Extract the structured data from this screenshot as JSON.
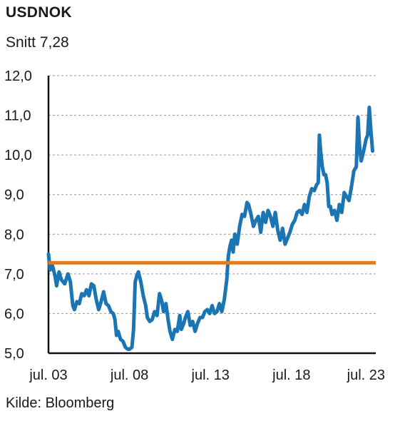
{
  "chart_data": {
    "type": "line",
    "title": "USDNOK",
    "subtitle": "Snitt 7,28",
    "source": "Kilde: Bloomberg",
    "ylim": [
      5.0,
      12.0
    ],
    "xlim": [
      2003.5,
      2023.7
    ],
    "yticks": [
      {
        "value": 5.0,
        "label": "5,0"
      },
      {
        "value": 6.0,
        "label": "6,0"
      },
      {
        "value": 7.0,
        "label": "7,0"
      },
      {
        "value": 8.0,
        "label": "8,0"
      },
      {
        "value": 9.0,
        "label": "9,0"
      },
      {
        "value": 10.0,
        "label": "10,0"
      },
      {
        "value": 11.0,
        "label": "11,0"
      },
      {
        "value": 12.0,
        "label": "12,0"
      }
    ],
    "xticks": [
      {
        "value": 2003.5,
        "label": "jul. 03"
      },
      {
        "value": 2008.5,
        "label": "jul. 08"
      },
      {
        "value": 2013.5,
        "label": "jul. 13"
      },
      {
        "value": 2018.5,
        "label": "jul. 18"
      },
      {
        "value": 2023.5,
        "label": "jul. 23"
      }
    ],
    "grid": true,
    "average": {
      "value": 7.28,
      "color": "#e07b24"
    },
    "series": [
      {
        "color": "#1b75b3",
        "points": [
          [
            2003.5,
            7.5
          ],
          [
            2003.6,
            7.1
          ],
          [
            2003.75,
            7.2
          ],
          [
            2003.9,
            6.95
          ],
          [
            2004.0,
            6.7
          ],
          [
            2004.15,
            7.05
          ],
          [
            2004.3,
            6.85
          ],
          [
            2004.5,
            6.75
          ],
          [
            2004.7,
            7.0
          ],
          [
            2004.85,
            6.8
          ],
          [
            2005.0,
            6.2
          ],
          [
            2005.1,
            6.1
          ],
          [
            2005.25,
            6.3
          ],
          [
            2005.4,
            6.25
          ],
          [
            2005.55,
            6.5
          ],
          [
            2005.7,
            6.45
          ],
          [
            2005.85,
            6.6
          ],
          [
            2006.0,
            6.45
          ],
          [
            2006.15,
            6.75
          ],
          [
            2006.3,
            6.7
          ],
          [
            2006.45,
            6.35
          ],
          [
            2006.6,
            6.1
          ],
          [
            2006.75,
            6.3
          ],
          [
            2006.9,
            6.55
          ],
          [
            2007.05,
            6.25
          ],
          [
            2007.2,
            6.2
          ],
          [
            2007.35,
            6.05
          ],
          [
            2007.5,
            6.0
          ],
          [
            2007.6,
            5.85
          ],
          [
            2007.7,
            5.45
          ],
          [
            2007.8,
            5.55
          ],
          [
            2007.95,
            5.35
          ],
          [
            2008.1,
            5.3
          ],
          [
            2008.25,
            5.15
          ],
          [
            2008.4,
            5.1
          ],
          [
            2008.5,
            5.1
          ],
          [
            2008.65,
            5.15
          ],
          [
            2008.75,
            5.6
          ],
          [
            2008.85,
            6.8
          ],
          [
            2008.95,
            6.95
          ],
          [
            2009.05,
            7.05
          ],
          [
            2009.2,
            6.8
          ],
          [
            2009.35,
            6.45
          ],
          [
            2009.5,
            6.2
          ],
          [
            2009.6,
            5.9
          ],
          [
            2009.75,
            5.8
          ],
          [
            2009.9,
            5.85
          ],
          [
            2010.05,
            6.05
          ],
          [
            2010.2,
            5.95
          ],
          [
            2010.35,
            6.5
          ],
          [
            2010.5,
            6.3
          ],
          [
            2010.6,
            6.05
          ],
          [
            2010.75,
            6.25
          ],
          [
            2010.9,
            5.8
          ],
          [
            2011.0,
            5.55
          ],
          [
            2011.15,
            5.35
          ],
          [
            2011.3,
            5.6
          ],
          [
            2011.45,
            5.55
          ],
          [
            2011.6,
            5.95
          ],
          [
            2011.7,
            5.6
          ],
          [
            2011.85,
            5.75
          ],
          [
            2011.95,
            5.9
          ],
          [
            2012.1,
            6.05
          ],
          [
            2012.25,
            5.7
          ],
          [
            2012.4,
            5.8
          ],
          [
            2012.55,
            5.55
          ],
          [
            2012.7,
            5.75
          ],
          [
            2012.85,
            5.9
          ],
          [
            2013.0,
            5.9
          ],
          [
            2013.15,
            6.05
          ],
          [
            2013.3,
            6.1
          ],
          [
            2013.45,
            6.0
          ],
          [
            2013.6,
            6.2
          ],
          [
            2013.75,
            6.0
          ],
          [
            2013.9,
            6.05
          ],
          [
            2014.05,
            6.25
          ],
          [
            2014.2,
            6.05
          ],
          [
            2014.35,
            6.35
          ],
          [
            2014.5,
            6.85
          ],
          [
            2014.6,
            7.45
          ],
          [
            2014.7,
            7.7
          ],
          [
            2014.8,
            7.85
          ],
          [
            2014.9,
            7.55
          ],
          [
            2015.0,
            8.0
          ],
          [
            2015.15,
            7.75
          ],
          [
            2015.3,
            8.2
          ],
          [
            2015.45,
            8.5
          ],
          [
            2015.6,
            8.45
          ],
          [
            2015.75,
            8.8
          ],
          [
            2015.85,
            8.75
          ],
          [
            2016.0,
            8.5
          ],
          [
            2016.15,
            8.2
          ],
          [
            2016.3,
            8.35
          ],
          [
            2016.45,
            8.45
          ],
          [
            2016.6,
            8.05
          ],
          [
            2016.75,
            8.55
          ],
          [
            2016.9,
            8.3
          ],
          [
            2017.05,
            8.6
          ],
          [
            2017.2,
            8.45
          ],
          [
            2017.35,
            8.2
          ],
          [
            2017.5,
            8.55
          ],
          [
            2017.65,
            8.1
          ],
          [
            2017.8,
            7.85
          ],
          [
            2017.95,
            8.15
          ],
          [
            2018.1,
            7.75
          ],
          [
            2018.25,
            7.9
          ],
          [
            2018.4,
            8.05
          ],
          [
            2018.55,
            8.25
          ],
          [
            2018.7,
            8.35
          ],
          [
            2018.85,
            8.55
          ],
          [
            2019.0,
            8.6
          ],
          [
            2019.15,
            8.5
          ],
          [
            2019.3,
            8.75
          ],
          [
            2019.45,
            8.55
          ],
          [
            2019.6,
            8.95
          ],
          [
            2019.75,
            9.15
          ],
          [
            2019.9,
            9.1
          ],
          [
            2020.05,
            9.25
          ],
          [
            2020.15,
            9.3
          ],
          [
            2020.22,
            10.5
          ],
          [
            2020.3,
            10.1
          ],
          [
            2020.4,
            9.7
          ],
          [
            2020.5,
            9.5
          ],
          [
            2020.6,
            9.5
          ],
          [
            2020.7,
            9.3
          ],
          [
            2020.8,
            8.7
          ],
          [
            2020.9,
            8.7
          ],
          [
            2021.0,
            8.5
          ],
          [
            2021.15,
            8.6
          ],
          [
            2021.3,
            8.35
          ],
          [
            2021.45,
            8.75
          ],
          [
            2021.6,
            8.55
          ],
          [
            2021.75,
            9.05
          ],
          [
            2021.9,
            8.95
          ],
          [
            2022.05,
            8.85
          ],
          [
            2022.2,
            9.2
          ],
          [
            2022.35,
            9.6
          ],
          [
            2022.5,
            9.7
          ],
          [
            2022.6,
            10.95
          ],
          [
            2022.7,
            10.2
          ],
          [
            2022.8,
            9.85
          ],
          [
            2022.95,
            10.1
          ],
          [
            2023.1,
            10.4
          ],
          [
            2023.2,
            10.5
          ],
          [
            2023.3,
            11.2
          ],
          [
            2023.4,
            10.6
          ],
          [
            2023.5,
            10.1
          ]
        ]
      }
    ]
  }
}
